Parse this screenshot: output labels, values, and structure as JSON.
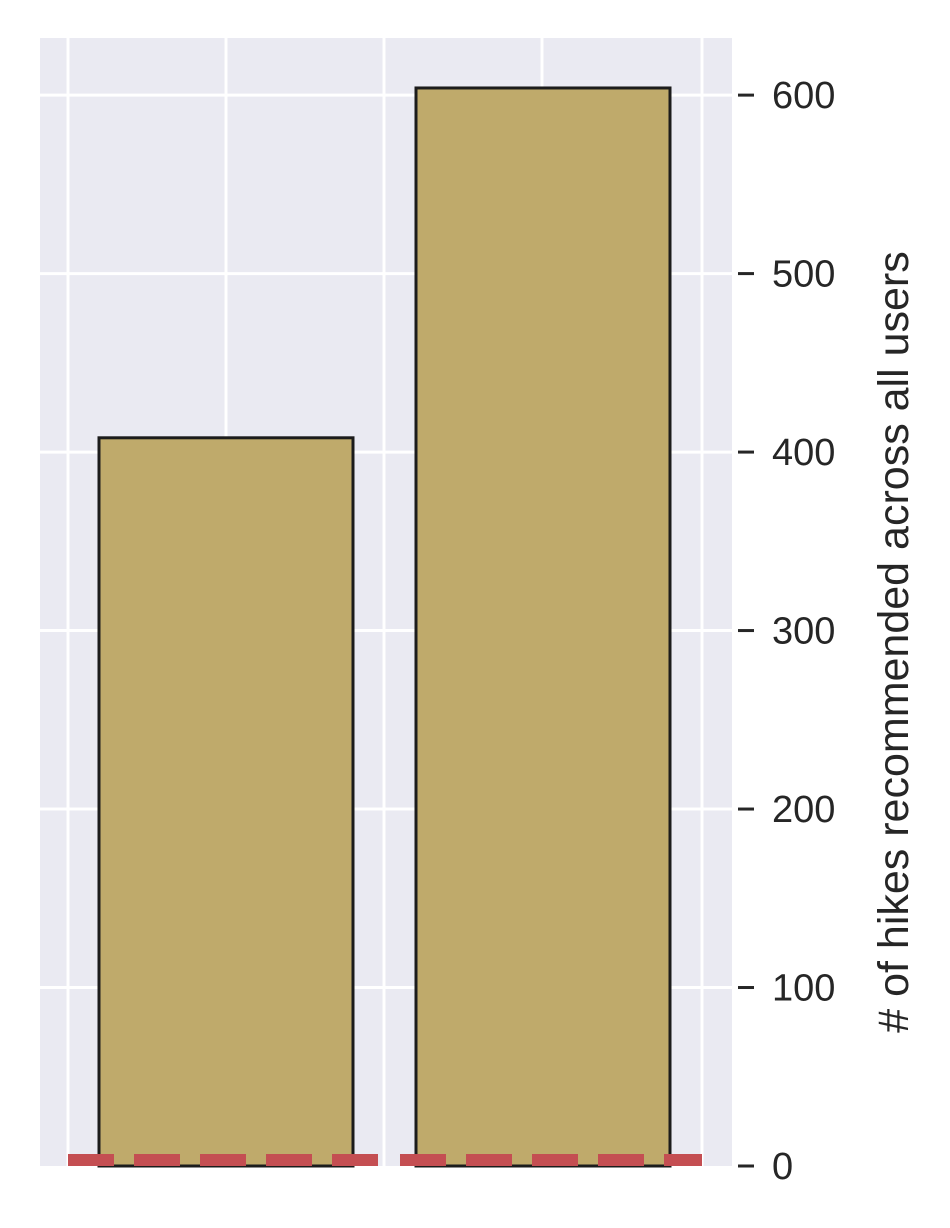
{
  "chart_data": {
    "type": "bar",
    "categories": [
      "",
      ""
    ],
    "values": [
      408,
      604
    ],
    "xlabel": "",
    "ylabel": "# of hikes recommended across all users",
    "ylim": [
      0,
      632
    ],
    "yticks": [
      0,
      100,
      200,
      300,
      400,
      500,
      600
    ],
    "y_axis_side": "right",
    "grid": true,
    "bar_color": "#bfaa6b",
    "bar_edge_color": "#1c1c1c",
    "background_color": "#eaeaf2",
    "grid_color": "#ffffff",
    "baseline_line": {
      "value": 0,
      "style": "dashed",
      "color": "#c44e52"
    }
  }
}
